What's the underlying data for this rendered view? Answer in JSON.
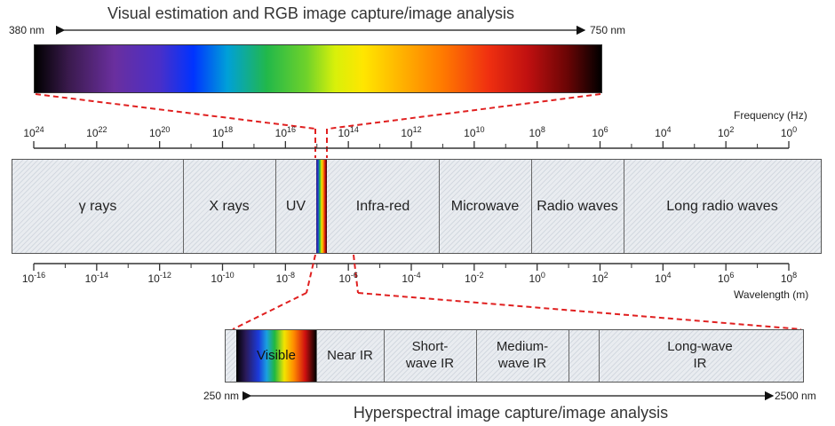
{
  "top_title": "Visual estimation and RGB image capture/image analysis",
  "top_range": {
    "start": "380 nm",
    "end": "750 nm"
  },
  "frequency_axis": {
    "title": "Frequency (Hz)",
    "ticks": [
      {
        "base": "10",
        "exp": "24"
      },
      {
        "base": "10",
        "exp": "22"
      },
      {
        "base": "10",
        "exp": "20"
      },
      {
        "base": "10",
        "exp": "18"
      },
      {
        "base": "10",
        "exp": "16"
      },
      {
        "base": "10",
        "exp": "14"
      },
      {
        "base": "10",
        "exp": "12"
      },
      {
        "base": "10",
        "exp": "10"
      },
      {
        "base": "10",
        "exp": "8"
      },
      {
        "base": "10",
        "exp": "6"
      },
      {
        "base": "10",
        "exp": "4"
      },
      {
        "base": "10",
        "exp": "2"
      },
      {
        "base": "10",
        "exp": "0"
      }
    ]
  },
  "spectrum_bands": [
    {
      "label": "γ rays"
    },
    {
      "label": "X rays"
    },
    {
      "label": "UV"
    },
    {
      "label": "Infra-red"
    },
    {
      "label": "Microwave"
    },
    {
      "label": "Radio waves"
    },
    {
      "label": "Long radio waves"
    }
  ],
  "wavelength_axis": {
    "title": "Wavelength (m)",
    "ticks": [
      {
        "base": "10",
        "exp": "-16"
      },
      {
        "base": "10",
        "exp": "-14"
      },
      {
        "base": "10",
        "exp": "-12"
      },
      {
        "base": "10",
        "exp": "-10"
      },
      {
        "base": "10",
        "exp": "-8"
      },
      {
        "base": "10",
        "exp": "-6"
      },
      {
        "base": "10",
        "exp": "-4"
      },
      {
        "base": "10",
        "exp": "-2"
      },
      {
        "base": "10",
        "exp": "0"
      },
      {
        "base": "10",
        "exp": "2"
      },
      {
        "base": "10",
        "exp": "4"
      },
      {
        "base": "10",
        "exp": "6"
      },
      {
        "base": "10",
        "exp": "8"
      }
    ]
  },
  "hyperspectral_bands": [
    {
      "label": "Visible"
    },
    {
      "label": "Near IR"
    },
    {
      "label": "Short-\nwave IR"
    },
    {
      "label": "Medium-\nwave IR"
    },
    {
      "label": ""
    },
    {
      "label": "Long-wave\nIR"
    }
  ],
  "bottom_range": {
    "start": "250 nm",
    "end": "2500 nm"
  },
  "bottom_title": "Hyperspectral image capture/image analysis",
  "colors": {
    "connector": "#e02020",
    "axis": "#333333",
    "band_fill": "#e9ecf0"
  }
}
